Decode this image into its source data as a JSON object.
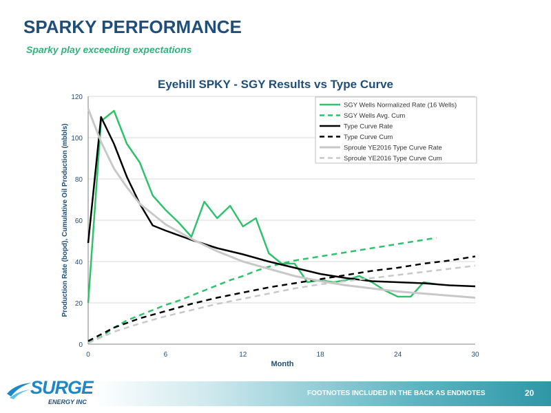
{
  "slide": {
    "title": "SPARKY PERFORMANCE",
    "subtitle": "Sparky play exceeding expectations"
  },
  "footer": {
    "note": "FOOTNOTES INCLUDED IN THE BACK AS ENDNOTES",
    "page_number": "20",
    "logo_text": "SURGE",
    "logo_subtext": "ENERGY INC"
  },
  "colors": {
    "title": "#1f4e79",
    "subtitle": "#2fb37a",
    "axis_text": "#1f4e79"
  },
  "chart_data": {
    "type": "line",
    "title": "Eyehill SPKY - SGY Results vs Type Curve",
    "xlabel": "Month",
    "ylabel": "Production Rate (bopd), Cumulative Oil Production (mbbls)",
    "xlim": [
      0,
      30
    ],
    "ylim": [
      0,
      120
    ],
    "xticks": [
      0,
      6,
      12,
      18,
      24,
      30
    ],
    "yticks": [
      0,
      20,
      40,
      60,
      80,
      100,
      120
    ],
    "grid": "horizontal",
    "legend_position": "top-right",
    "series": [
      {
        "name": "SGY Wells Normalized Rate (16 Wells)",
        "color": "#2fc26a",
        "dash": "solid",
        "width": 2.5,
        "x": [
          0,
          1,
          2,
          3,
          4,
          5,
          6,
          7,
          8,
          9,
          10,
          11,
          12,
          13,
          14,
          15,
          16,
          17,
          18,
          19,
          20,
          21,
          22,
          23,
          24,
          25,
          26,
          27
        ],
        "y": [
          20,
          108,
          113,
          97,
          88,
          72,
          65,
          59,
          52,
          69,
          61,
          67,
          57,
          61,
          44,
          39,
          39,
          30,
          31,
          30,
          31,
          33,
          30,
          26,
          23,
          23,
          30,
          29
        ]
      },
      {
        "name": "SGY Wells Avg. Cum",
        "color": "#2fc26a",
        "dash": "dashed",
        "width": 2.5,
        "x": [
          0,
          1,
          2,
          3,
          4,
          5,
          6,
          7,
          8,
          9,
          10,
          11,
          12,
          13,
          14,
          15,
          16,
          17,
          18,
          19,
          20,
          21,
          22,
          23,
          24,
          25,
          26,
          27
        ],
        "y": [
          1,
          3.5,
          8,
          11.5,
          14,
          16.5,
          19,
          21,
          23.5,
          26,
          28.5,
          31,
          33,
          35.5,
          37.5,
          39,
          40.5,
          41.5,
          42.5,
          43.5,
          44.5,
          45.5,
          46.5,
          47.5,
          48.5,
          49.5,
          50.5,
          51.5
        ]
      },
      {
        "name": "Type Curve Rate",
        "color": "#000000",
        "dash": "solid",
        "width": 2.5,
        "x": [
          0,
          1,
          2,
          3,
          4,
          5,
          6,
          8,
          10,
          12,
          14,
          16,
          18,
          20,
          22,
          24,
          26,
          28,
          30
        ],
        "y": [
          49,
          110,
          97,
          81,
          68,
          57.5,
          55,
          50.5,
          46.5,
          43.5,
          40,
          37,
          34,
          32,
          30.5,
          30,
          29.5,
          28.5,
          28
        ]
      },
      {
        "name": "Type Curve Cum",
        "color": "#000000",
        "dash": "dashed",
        "width": 2.5,
        "x": [
          0,
          2,
          4,
          6,
          8,
          10,
          12,
          14,
          16,
          18,
          20,
          22,
          24,
          26,
          28,
          30
        ],
        "y": [
          1.5,
          8,
          12.5,
          16,
          19.5,
          22.5,
          25,
          27.5,
          29.5,
          31.5,
          33.5,
          35.5,
          37,
          39,
          40.5,
          42.5
        ]
      },
      {
        "name": "Sproule YE2016 Type Curve Rate",
        "color": "#c8c8c8",
        "dash": "solid",
        "width": 3,
        "x": [
          0,
          1,
          2,
          3,
          4,
          5,
          6,
          8,
          10,
          12,
          14,
          16,
          18,
          20,
          22,
          24,
          26,
          28,
          30
        ],
        "y": [
          114,
          98,
          85,
          76,
          68,
          63,
          58,
          51,
          45,
          40,
          36.5,
          33,
          30.5,
          28.5,
          27,
          25.5,
          24.5,
          23.5,
          22.5
        ]
      },
      {
        "name": "Sproule YE2016 Type Curve Cum",
        "color": "#c8c8c8",
        "dash": "dashed",
        "width": 2.5,
        "x": [
          0,
          2,
          4,
          6,
          8,
          10,
          12,
          14,
          16,
          18,
          20,
          22,
          24,
          26,
          28,
          30
        ],
        "y": [
          0.5,
          6,
          10,
          13.5,
          16.5,
          19.5,
          22,
          24.5,
          27,
          29,
          30.5,
          32,
          33.5,
          35,
          36.5,
          38
        ]
      }
    ]
  }
}
